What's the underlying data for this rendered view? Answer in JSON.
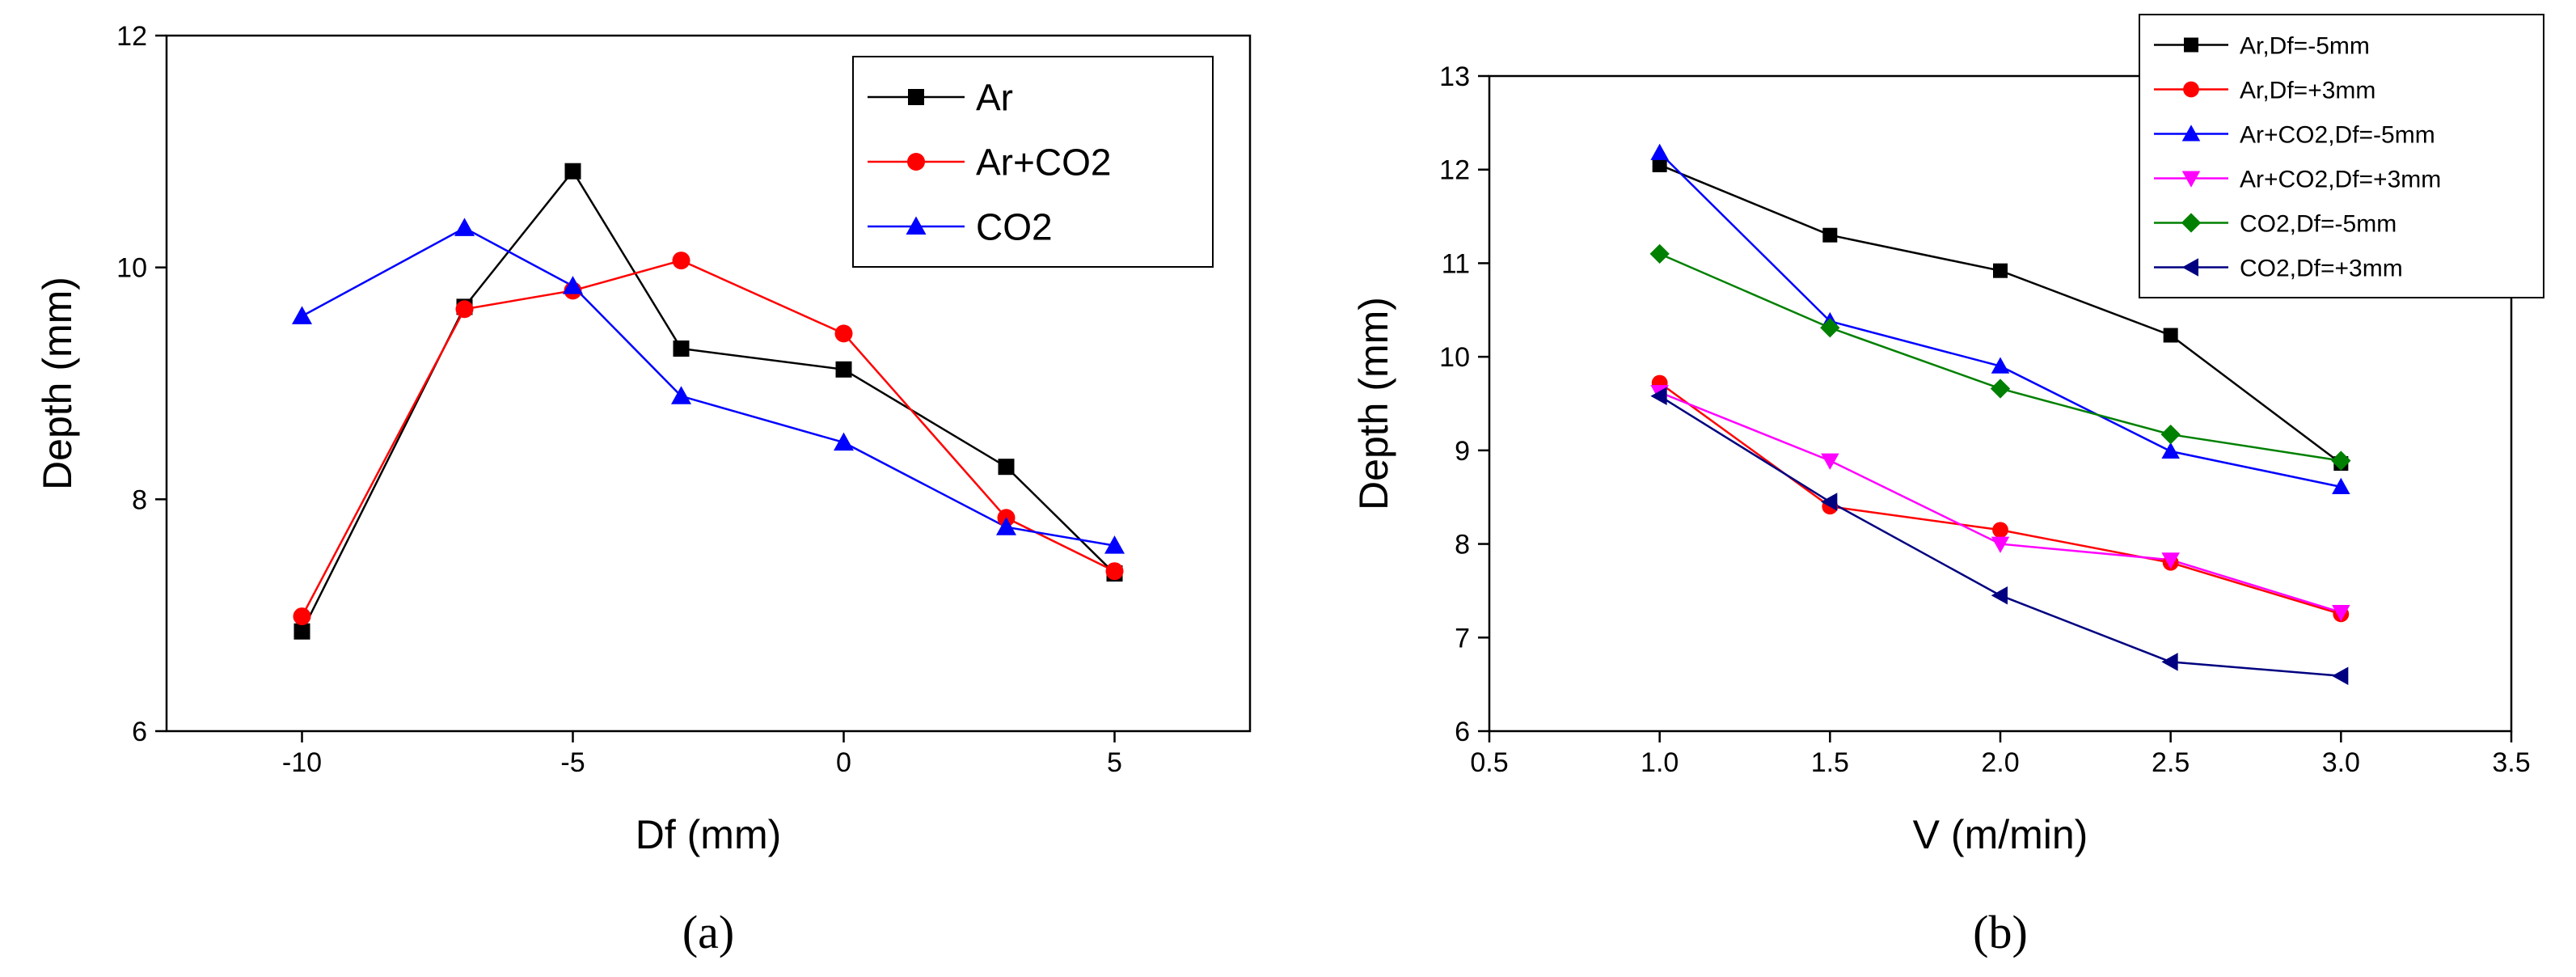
{
  "chart_data": [
    {
      "type": "line",
      "panel_label": "(a)",
      "xlabel": "Df (mm)",
      "ylabel": "Depth (mm)",
      "xlim": [
        -12.5,
        7.5
      ],
      "ylim": [
        6,
        12
      ],
      "xticks": [
        -10,
        -5,
        0,
        5
      ],
      "yticks": [
        6,
        8,
        10,
        12
      ],
      "legend_position": "top-right",
      "series": [
        {
          "name": "Ar",
          "color": "#000000",
          "marker": "square",
          "x": [
            -10,
            -7,
            -5,
            -3,
            0,
            3,
            5
          ],
          "y": [
            6.86,
            9.66,
            10.83,
            9.3,
            9.12,
            8.28,
            7.36
          ]
        },
        {
          "name": "Ar+CO2",
          "color": "#ff0000",
          "marker": "circle",
          "x": [
            -10,
            -7,
            -5,
            -3,
            0,
            3,
            5
          ],
          "y": [
            6.99,
            9.64,
            9.8,
            10.06,
            9.43,
            7.84,
            7.38
          ]
        },
        {
          "name": "CO2",
          "color": "#0000ff",
          "marker": "triangle-up",
          "x": [
            -10,
            -7,
            -5,
            -3,
            0,
            3,
            5
          ],
          "y": [
            9.58,
            10.34,
            9.84,
            8.89,
            8.49,
            7.76,
            7.6
          ]
        }
      ]
    },
    {
      "type": "line",
      "panel_label": "(b)",
      "xlabel": "V (m/min)",
      "ylabel": "Depth (mm)",
      "xlim": [
        0.5,
        3.5
      ],
      "ylim": [
        6,
        13
      ],
      "xticks": [
        0.5,
        1.0,
        1.5,
        2.0,
        2.5,
        3.0,
        3.5
      ],
      "yticks": [
        6,
        7,
        8,
        9,
        10,
        11,
        12,
        13
      ],
      "legend_position": "top-right",
      "series": [
        {
          "name": "Ar,Df=-5mm",
          "color": "#000000",
          "marker": "square",
          "x": [
            1.0,
            1.5,
            2.0,
            2.5,
            3.0
          ],
          "y": [
            12.05,
            11.3,
            10.92,
            10.23,
            8.86
          ]
        },
        {
          "name": "Ar,Df=+3mm",
          "color": "#ff0000",
          "marker": "circle",
          "x": [
            1.0,
            1.5,
            2.0,
            2.5,
            3.0
          ],
          "y": [
            9.72,
            8.4,
            8.15,
            7.8,
            7.25
          ]
        },
        {
          "name": "Ar+CO2,Df=-5mm",
          "color": "#0000ff",
          "marker": "triangle-up",
          "x": [
            1.0,
            1.5,
            2.0,
            2.5,
            3.0
          ],
          "y": [
            12.18,
            10.38,
            9.9,
            8.99,
            8.61
          ]
        },
        {
          "name": "Ar+CO2,Df=+3mm",
          "color": "#ff00ff",
          "marker": "triangle-down",
          "x": [
            1.0,
            1.5,
            2.0,
            2.5,
            3.0
          ],
          "y": [
            9.62,
            8.89,
            8.0,
            7.83,
            7.27
          ]
        },
        {
          "name": "CO2,Df=-5mm",
          "color": "#008000",
          "marker": "diamond",
          "x": [
            1.0,
            1.5,
            2.0,
            2.5,
            3.0
          ],
          "y": [
            11.1,
            10.31,
            9.66,
            9.17,
            8.89
          ]
        },
        {
          "name": "CO2,Df=+3mm",
          "color": "#000080",
          "marker": "triangle-left",
          "x": [
            1.0,
            1.5,
            2.0,
            2.5,
            3.0
          ],
          "y": [
            9.58,
            8.45,
            7.45,
            6.74,
            6.59
          ]
        }
      ]
    }
  ]
}
